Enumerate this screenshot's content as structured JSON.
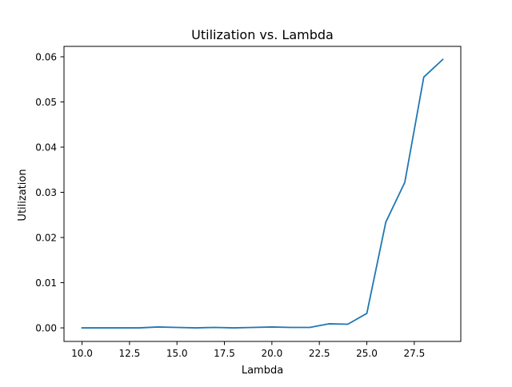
{
  "chart_data": {
    "type": "line",
    "title": "Utilization vs. Lambda",
    "xlabel": "Lambda",
    "ylabel": "Utilization",
    "xlim": [
      9.05,
      29.95
    ],
    "ylim": [
      -0.003,
      0.0623
    ],
    "xticks": [
      10.0,
      12.5,
      15.0,
      17.5,
      20.0,
      22.5,
      25.0,
      27.5
    ],
    "xtick_labels": [
      "10.0",
      "12.5",
      "15.0",
      "17.5",
      "20.0",
      "22.5",
      "25.0",
      "27.5"
    ],
    "yticks": [
      0.0,
      0.01,
      0.02,
      0.03,
      0.04,
      0.05,
      0.06
    ],
    "ytick_labels": [
      "0.00",
      "0.01",
      "0.02",
      "0.03",
      "0.04",
      "0.05",
      "0.06"
    ],
    "grid": false,
    "legend": "none",
    "series": [
      {
        "color": "#1f77b4",
        "x": [
          10,
          11,
          12,
          13,
          14,
          15,
          16,
          17,
          18,
          19,
          20,
          21,
          22,
          23,
          24,
          25,
          26,
          27,
          28,
          29
        ],
        "y": [
          0.0,
          0.0,
          0.0,
          0.0,
          0.0002,
          0.0001,
          0.0,
          0.0001,
          0.0,
          0.0001,
          0.0002,
          0.0001,
          0.0001,
          0.0009,
          0.0008,
          0.0032,
          0.0234,
          0.0322,
          0.0555,
          0.0594
        ]
      }
    ]
  }
}
